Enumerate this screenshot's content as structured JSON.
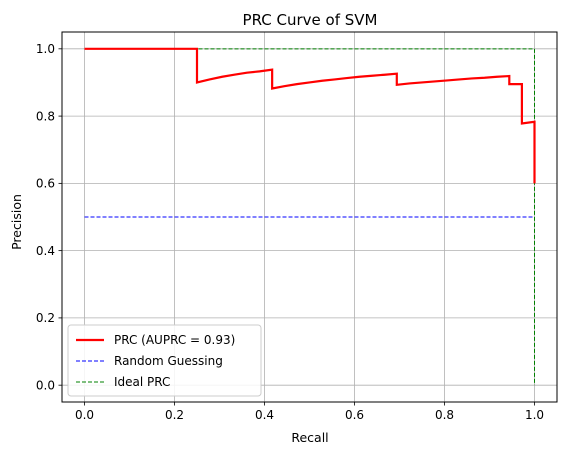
{
  "chart_data": {
    "type": "line",
    "title": "PRC Curve of SVM",
    "xlabel": "Recall",
    "ylabel": "Precision",
    "xlim": [
      -0.05,
      1.05
    ],
    "ylim": [
      -0.05,
      1.05
    ],
    "x_ticks": [
      0.0,
      0.2,
      0.4,
      0.6,
      0.8,
      1.0
    ],
    "x_tick_labels": [
      "0.0",
      "0.2",
      "0.4",
      "0.6",
      "0.8",
      "1.0"
    ],
    "y_ticks": [
      0.0,
      0.2,
      0.4,
      0.6,
      0.8,
      1.0
    ],
    "y_tick_labels": [
      "0.0",
      "0.2",
      "0.4",
      "0.6",
      "0.8",
      "1.0"
    ],
    "grid": true,
    "legend_position": "lower-left",
    "series": [
      {
        "name": "PRC (AUPRC = 0.93)",
        "color": "#ff0000",
        "style": "solid",
        "x": [
          0.0,
          0.25,
          0.25,
          0.278,
          0.306,
          0.333,
          0.361,
          0.389,
          0.417,
          0.417,
          0.444,
          0.472,
          0.5,
          0.528,
          0.556,
          0.583,
          0.611,
          0.639,
          0.667,
          0.694,
          0.694,
          0.722,
          0.75,
          0.778,
          0.806,
          0.833,
          0.861,
          0.889,
          0.917,
          0.944,
          0.944,
          0.972,
          0.972,
          1.0,
          1.0
        ],
        "y": [
          1.0,
          1.0,
          0.9,
          0.909,
          0.917,
          0.923,
          0.929,
          0.933,
          0.938,
          0.882,
          0.889,
          0.895,
          0.9,
          0.905,
          0.909,
          0.913,
          0.917,
          0.92,
          0.923,
          0.926,
          0.893,
          0.897,
          0.9,
          0.903,
          0.906,
          0.909,
          0.912,
          0.914,
          0.917,
          0.919,
          0.895,
          0.895,
          0.778,
          0.783,
          0.6
        ]
      },
      {
        "name": "Random Guessing",
        "color": "#0000ff",
        "style": "dashed",
        "x": [
          0.0,
          1.0
        ],
        "y": [
          0.5,
          0.5
        ]
      },
      {
        "name": "Ideal PRC",
        "color": "#008000",
        "style": "dashed",
        "x": [
          0.0,
          1.0,
          1.0
        ],
        "y": [
          1.0,
          1.0,
          0.0
        ]
      }
    ]
  }
}
